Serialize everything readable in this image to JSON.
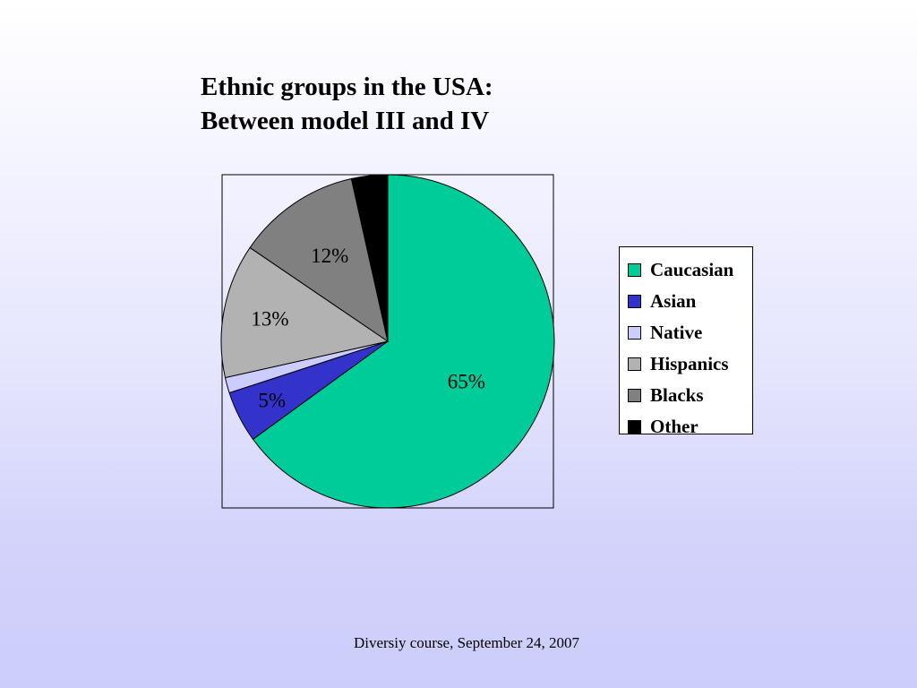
{
  "slide": {
    "title_line1": "Ethnic groups in the USA:",
    "title_line2": "Between model III and IV",
    "footer": "Diversiy course, September 24, 2007"
  },
  "chart_data": {
    "type": "pie",
    "start_angle_deg": 90,
    "direction": "clockwise",
    "legend_position": "right",
    "slices": [
      {
        "label": "Caucasian",
        "value": 65,
        "color": "#00cc99",
        "data_label": "65%"
      },
      {
        "label": "Asian",
        "value": 5,
        "color": "#3333cc",
        "data_label": "5%"
      },
      {
        "label": "Native",
        "value": 1.5,
        "color": "#ccccff",
        "data_label": ""
      },
      {
        "label": "Hispanics",
        "value": 13,
        "color": "#b2b2b2",
        "data_label": "13%"
      },
      {
        "label": "Blacks",
        "value": 12,
        "color": "#808080",
        "data_label": "12%"
      },
      {
        "label": "Other",
        "value": 3.5,
        "color": "#000000",
        "data_label": ""
      }
    ]
  }
}
